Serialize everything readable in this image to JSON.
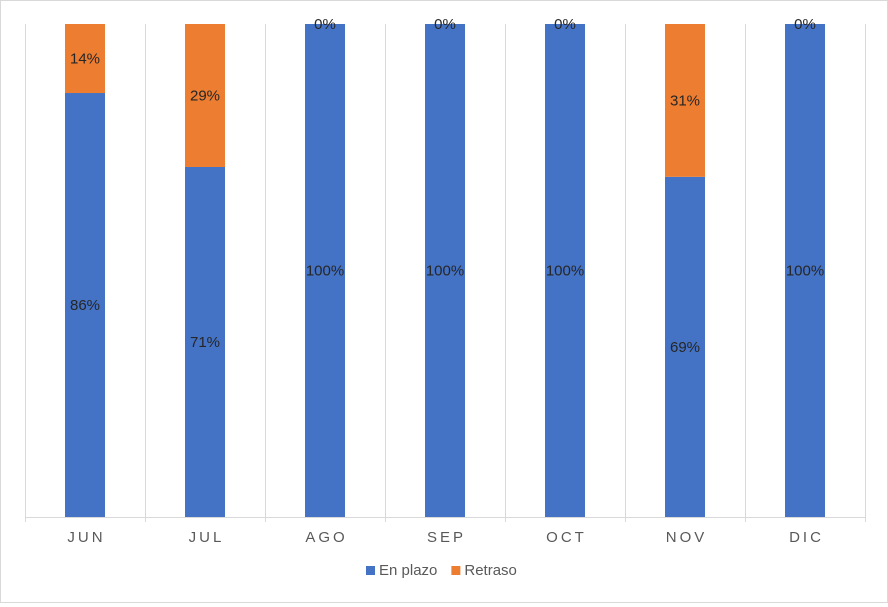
{
  "chart_data": {
    "type": "bar",
    "stacked": true,
    "percent_stacked": true,
    "categories": [
      "JUN",
      "JUL",
      "AGO",
      "SEP",
      "OCT",
      "NOV",
      "DIC"
    ],
    "series": [
      {
        "name": "En plazo",
        "values": [
          86,
          71,
          100,
          100,
          100,
          69,
          100
        ],
        "labels": [
          "86%",
          "71%",
          "100%",
          "100%",
          "100%",
          "69%",
          "100%"
        ],
        "color": "#4472c4"
      },
      {
        "name": "Retraso",
        "values": [
          14,
          29,
          0,
          0,
          0,
          31,
          0
        ],
        "labels": [
          "14%",
          "29%",
          "0%",
          "0%",
          "0%",
          "31%",
          "0%"
        ],
        "color": "#ed7d31"
      }
    ],
    "ylim": [
      0,
      100
    ],
    "grid": "vertical category separators",
    "legend_position": "bottom",
    "title": "",
    "xlabel": "",
    "ylabel": ""
  }
}
